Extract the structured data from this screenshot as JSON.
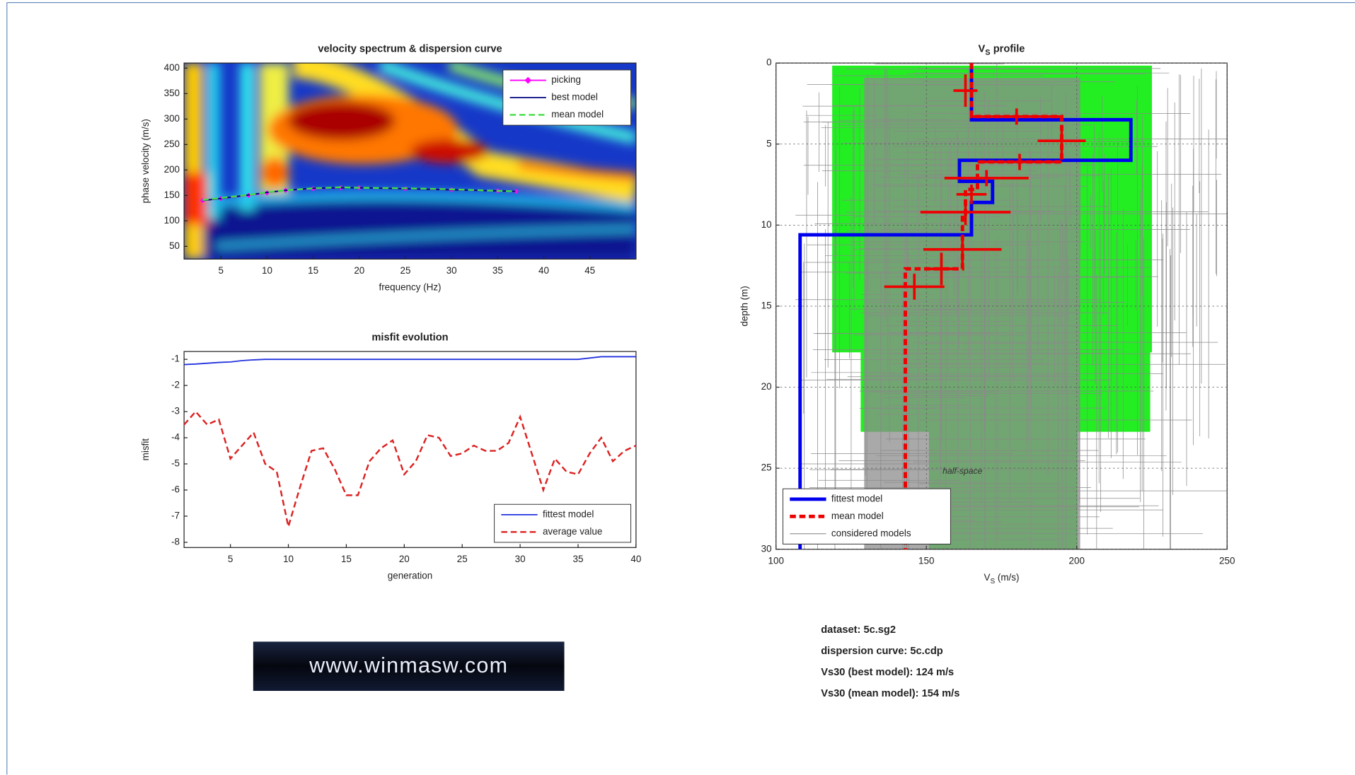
{
  "chart_data": [
    {
      "type": "line",
      "title": "velocity spectrum & dispersion curve",
      "xlabel": "frequency (Hz)",
      "ylabel": "phase velocity (m/s)",
      "xlim": [
        1,
        50
      ],
      "ylim": [
        25,
        410
      ],
      "xticks": [
        5,
        10,
        15,
        20,
        25,
        30,
        35,
        40,
        45
      ],
      "yticks": [
        50,
        100,
        150,
        200,
        250,
        300,
        350,
        400
      ],
      "legend": "upper right",
      "x": [
        3,
        5,
        8,
        10,
        12,
        15,
        18,
        20,
        25,
        30,
        35,
        37
      ],
      "series": [
        {
          "name": "picking",
          "color": "#ff00ff",
          "marker": "diamond",
          "values": [
            140,
            144,
            150,
            155,
            160,
            163,
            165,
            165,
            163,
            161,
            159,
            158
          ]
        },
        {
          "name": "best model",
          "color": "#000080",
          "values": [
            140,
            144,
            151,
            156,
            160,
            164,
            165,
            165,
            163,
            161,
            159,
            158
          ]
        },
        {
          "name": "mean model",
          "color": "#44dd44",
          "dash": true,
          "values": [
            141,
            145,
            151,
            156,
            160,
            164,
            166,
            165,
            164,
            162,
            159,
            158
          ]
        }
      ]
    },
    {
      "type": "line",
      "title": "misfit evolution",
      "xlabel": "generation",
      "ylabel": "misfit",
      "xlim": [
        1,
        40
      ],
      "ylim": [
        -8.2,
        -0.7
      ],
      "xticks": [
        5,
        10,
        15,
        20,
        25,
        30,
        35,
        40
      ],
      "yticks": [
        -1,
        -2,
        -3,
        -4,
        -5,
        -6,
        -7,
        -8
      ],
      "legend": "lower right",
      "x": [
        1,
        2,
        3,
        4,
        5,
        6,
        7,
        8,
        9,
        10,
        11,
        12,
        13,
        14,
        15,
        16,
        17,
        18,
        19,
        20,
        21,
        22,
        23,
        24,
        25,
        26,
        27,
        28,
        29,
        30,
        31,
        32,
        33,
        34,
        35,
        36,
        37,
        38,
        39,
        40
      ],
      "series": [
        {
          "name": "fittest model",
          "color": "#2233dd",
          "values": [
            -1.2,
            -1.18,
            -1.15,
            -1.12,
            -1.1,
            -1.05,
            -1.02,
            -1,
            -1,
            -1,
            -1,
            -1,
            -1,
            -1,
            -1,
            -1,
            -1,
            -1,
            -1,
            -1,
            -1,
            -1,
            -1,
            -1,
            -1,
            -1,
            -1,
            -1,
            -1,
            -1,
            -1,
            -1,
            -1,
            -1,
            -1,
            -0.95,
            -0.9,
            -0.9,
            -0.9,
            -0.9
          ]
        },
        {
          "name": "average value",
          "color": "#dd2222",
          "dash": true,
          "values": [
            -3.5,
            -3.0,
            -3.5,
            -3.3,
            -4.8,
            -4.3,
            -3.8,
            -5.0,
            -5.3,
            -7.4,
            -5.9,
            -4.5,
            -4.4,
            -5.2,
            -6.2,
            -6.2,
            -4.9,
            -4.4,
            -4.1,
            -5.4,
            -4.9,
            -3.9,
            -4.0,
            -4.7,
            -4.6,
            -4.3,
            -4.5,
            -4.5,
            -4.2,
            -3.2,
            -4.6,
            -6.0,
            -4.8,
            -5.3,
            -5.4,
            -4.6,
            -4.0,
            -4.9,
            -4.5,
            -4.3
          ]
        }
      ]
    },
    {
      "type": "profile",
      "title": "V",
      "title_sub": "S",
      "title_rest": " profile",
      "xlabel": "V",
      "xlabel_sub": "S",
      "xlabel_rest": " (m/s)",
      "ylabel": "depth (m)",
      "xlim": [
        100,
        250
      ],
      "ylim": [
        0,
        30
      ],
      "xticks": [
        100,
        150,
        200,
        250
      ],
      "yticks": [
        0,
        5,
        10,
        15,
        20,
        25,
        30
      ],
      "yreverse": true,
      "grid": true,
      "legend": "lower left",
      "annotation": "half-space",
      "series": [
        {
          "name": "fittest model",
          "color": "#0000ee",
          "width": 4,
          "x": [
            165,
            165,
            218,
            218,
            161,
            161,
            172,
            172,
            165,
            165,
            108,
            108
          ],
          "y": [
            0,
            3.5,
            3.5,
            6,
            6,
            7.3,
            7.3,
            8.6,
            8.6,
            10.6,
            10.6,
            30
          ]
        },
        {
          "name": "mean model",
          "color": "#ee0000",
          "width": 4,
          "dash": true,
          "x": [
            165,
            165,
            195,
            195,
            167,
            167,
            163,
            163,
            162,
            162,
            143,
            143
          ],
          "y": [
            0,
            3.3,
            3.3,
            6.1,
            6.1,
            7.8,
            7.8,
            9.3,
            9.3,
            12.7,
            12.7,
            30
          ]
        },
        {
          "name": "considered models",
          "color": "#999999",
          "width": 1
        }
      ],
      "error_crosses": {
        "color": "#ee0000",
        "x": [
          163,
          180,
          195,
          181,
          170,
          165,
          163,
          162,
          155,
          146
        ],
        "y": [
          1.7,
          3.3,
          4.8,
          6.1,
          7.1,
          8.1,
          9.2,
          11.5,
          12.7,
          13.8
        ],
        "xerr": [
          4,
          15,
          8,
          14,
          14,
          5,
          15,
          13,
          5,
          10
        ],
        "yerr": [
          1,
          0.5,
          0.8,
          0.5,
          0.5,
          0.6,
          0.8,
          0.9,
          1,
          0.8
        ]
      }
    }
  ],
  "info": [
    "dataset: 5c.sg2",
    "dispersion curve: 5c.cdp",
    "Vs30 (best model): 124 m/s",
    "Vs30 (mean model): 154 m/s"
  ],
  "logo": "www.winmasw.com"
}
